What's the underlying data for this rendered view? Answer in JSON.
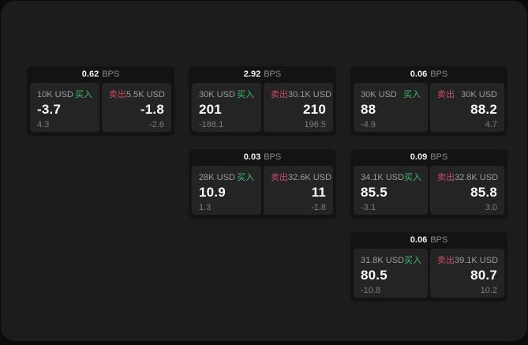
{
  "colors": {
    "buy_green": "#3abf6f",
    "sell_red": "#c84a67",
    "surface": "#1c1c1d",
    "card_bg": "#131313",
    "panel_bg": "#242425"
  },
  "labels": {
    "buy": "买入",
    "sell": "卖出",
    "bps_unit": "BPS"
  },
  "cards": [
    {
      "bps": "0.62",
      "buy": {
        "amount": "10K USD",
        "price": "-3.7",
        "delta": "4.3"
      },
      "sell": {
        "amount": "5.5K USD",
        "price": "-1.8",
        "delta": "-2.6"
      }
    },
    {
      "bps": "2.92",
      "buy": {
        "amount": "30K USD",
        "price": "201",
        "delta": "-188.1"
      },
      "sell": {
        "amount": "30.1K USD",
        "price": "210",
        "delta": "196.5"
      }
    },
    {
      "bps": "0.06",
      "buy": {
        "amount": "30K USD",
        "price": "88",
        "delta": "-4.9"
      },
      "sell": {
        "amount": "30K USD",
        "price": "88.2",
        "delta": "4.7"
      }
    },
    {
      "bps": "0.03",
      "buy": {
        "amount": "28K USD",
        "price": "10.9",
        "delta": "1.3"
      },
      "sell": {
        "amount": "32.6K USD",
        "price": "11",
        "delta": "-1.8"
      }
    },
    {
      "bps": "0.09",
      "buy": {
        "amount": "34.1K USD",
        "price": "85.5",
        "delta": "-3.1"
      },
      "sell": {
        "amount": "32.8K USD",
        "price": "85.8",
        "delta": "3.0"
      }
    },
    {
      "bps": "0.06",
      "buy": {
        "amount": "31.8K USD",
        "price": "80.5",
        "delta": "-10.8"
      },
      "sell": {
        "amount": "39.1K USD",
        "price": "80.7",
        "delta": "10.2"
      }
    }
  ]
}
